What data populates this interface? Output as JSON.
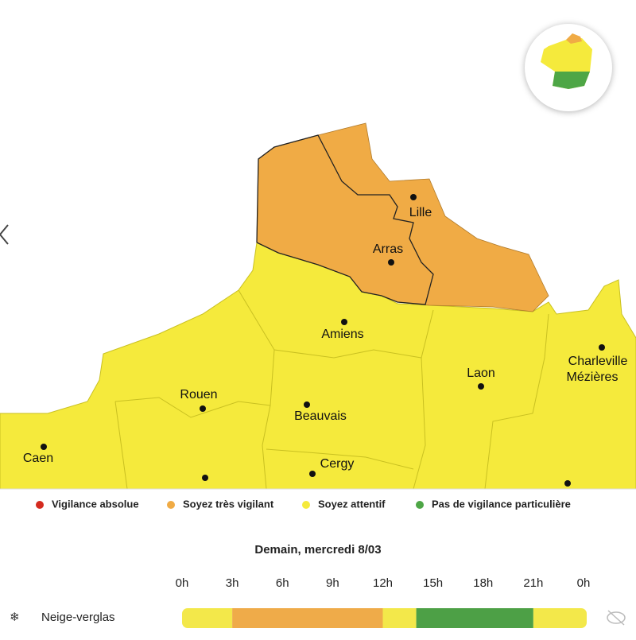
{
  "map": {
    "cities": [
      {
        "name": "Lille",
        "dot": [
          520,
          248
        ],
        "label": [
          529,
          268
        ]
      },
      {
        "name": "Arras",
        "dot": [
          492,
          330
        ],
        "label": [
          488,
          314
        ]
      },
      {
        "name": "Amiens",
        "dot": [
          433,
          405
        ],
        "label": [
          431,
          421
        ]
      },
      {
        "name": "Rouen",
        "dot": [
          255,
          514
        ],
        "label": [
          250,
          497
        ]
      },
      {
        "name": "Beauvais",
        "dot": [
          386,
          509
        ],
        "label": [
          403,
          524
        ]
      },
      {
        "name": "Laon",
        "dot": [
          605,
          486
        ],
        "label": [
          605,
          470
        ]
      },
      {
        "name": "Charleville",
        "dot": [
          757,
          437
        ],
        "label": [
          752,
          455
        ]
      },
      {
        "name": "Mézières",
        "dot": null,
        "label": [
          745,
          475
        ]
      },
      {
        "name": "Caen",
        "dot": [
          55,
          562
        ],
        "label": [
          48,
          577
        ]
      },
      {
        "name": "Cergy",
        "dot": [
          393,
          596
        ],
        "label": [
          424,
          584
        ]
      }
    ]
  },
  "legend": {
    "items": [
      {
        "label": "Vigilance absolue",
        "color": "#d42b1f"
      },
      {
        "label": "Soyez très vigilant",
        "color": "#f0ab45"
      },
      {
        "label": "Soyez attentif",
        "color": "#f5ea3c"
      },
      {
        "label": "Pas de vigilance particulière",
        "color": "#4ea646"
      }
    ]
  },
  "timeline": {
    "title": "Demain, mercredi 8/03",
    "ticks": [
      {
        "value": 0,
        "label": "0h"
      },
      {
        "value": 3,
        "label": "3h"
      },
      {
        "value": 6,
        "label": "6h"
      },
      {
        "value": 9,
        "label": "9h"
      },
      {
        "value": 12,
        "label": "12h"
      },
      {
        "value": 15,
        "label": "15h"
      },
      {
        "value": 18,
        "label": "18h"
      },
      {
        "value": 21,
        "label": "21h"
      },
      {
        "value": 24,
        "label": "0h"
      }
    ],
    "rows": [
      {
        "label": "Neige-verglas",
        "segments": [
          {
            "start": 0,
            "end": 3,
            "color": "#f3e84a"
          },
          {
            "start": 3,
            "end": 12,
            "color": "#efab49"
          },
          {
            "start": 12,
            "end": 14,
            "color": "#f3e84a"
          },
          {
            "start": 14,
            "end": 21,
            "color": "#4da046"
          },
          {
            "start": 21,
            "end": 24,
            "color": "#f3e84a"
          }
        ]
      }
    ]
  }
}
